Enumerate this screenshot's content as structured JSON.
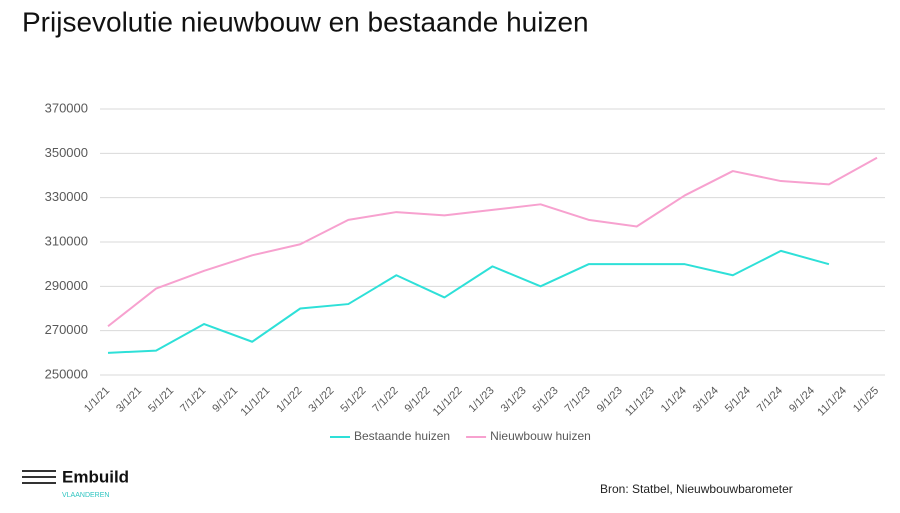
{
  "chart_data": {
    "type": "line",
    "title": "Prijsevolutie nieuwbouw en bestaande huizen",
    "x": [
      "2021-01-01",
      "2021-04-01",
      "2021-07-01",
      "2021-10-01",
      "2022-01-01",
      "2022-04-01",
      "2022-07-01",
      "2022-10-01",
      "2023-01-01",
      "2023-04-01",
      "2023-07-01",
      "2023-10-01",
      "2024-01-01",
      "2024-04-01",
      "2024-07-01",
      "2024-10-01",
      "2025-01-01"
    ],
    "xlim": [
      "2021-01-01",
      "2025-01-01"
    ],
    "xticks": [
      {
        "value": "2021-01-01",
        "label": "1/1/21"
      },
      {
        "value": "2021-03-01",
        "label": "3/1/21"
      },
      {
        "value": "2021-05-01",
        "label": "5/1/21"
      },
      {
        "value": "2021-07-01",
        "label": "7/1/21"
      },
      {
        "value": "2021-09-01",
        "label": "9/1/21"
      },
      {
        "value": "2021-11-01",
        "label": "11/1/21"
      },
      {
        "value": "2022-01-01",
        "label": "1/1/22"
      },
      {
        "value": "2022-03-01",
        "label": "3/1/22"
      },
      {
        "value": "2022-05-01",
        "label": "5/1/22"
      },
      {
        "value": "2022-07-01",
        "label": "7/1/22"
      },
      {
        "value": "2022-09-01",
        "label": "9/1/22"
      },
      {
        "value": "2022-11-01",
        "label": "11/1/22"
      },
      {
        "value": "2023-01-01",
        "label": "1/1/23"
      },
      {
        "value": "2023-03-01",
        "label": "3/1/23"
      },
      {
        "value": "2023-05-01",
        "label": "5/1/23"
      },
      {
        "value": "2023-07-01",
        "label": "7/1/23"
      },
      {
        "value": "2023-09-01",
        "label": "9/1/23"
      },
      {
        "value": "2023-11-01",
        "label": "11/1/23"
      },
      {
        "value": "2024-01-01",
        "label": "1/1/24"
      },
      {
        "value": "2024-03-01",
        "label": "3/1/24"
      },
      {
        "value": "2024-05-01",
        "label": "5/1/24"
      },
      {
        "value": "2024-07-01",
        "label": "7/1/24"
      },
      {
        "value": "2024-09-01",
        "label": "9/1/24"
      },
      {
        "value": "2024-11-01",
        "label": "11/1/24"
      },
      {
        "value": "2025-01-01",
        "label": "1/1/25"
      }
    ],
    "ylim": [
      250000,
      370000
    ],
    "yticks": [
      250000,
      270000,
      290000,
      310000,
      330000,
      350000,
      370000
    ],
    "grid": true,
    "legend": "bottom",
    "series": [
      {
        "name": "Bestaande huizen",
        "color": "#2ee0d8",
        "values": [
          260000,
          261000,
          273000,
          265000,
          280000,
          282000,
          295000,
          285000,
          299000,
          290000,
          300000,
          300000,
          300000,
          295000,
          306000,
          300000,
          null
        ]
      },
      {
        "name": "Nieuwbouw huizen",
        "color": "#f7a1cf",
        "values": [
          272000,
          289000,
          297000,
          304000,
          309000,
          320000,
          323500,
          322000,
          324500,
          327000,
          320000,
          317000,
          331000,
          342000,
          337500,
          336000,
          348000
        ]
      }
    ],
    "source": "Bron: Statbel, Nieuwbouwbarometer"
  },
  "logo": {
    "name": "Embuild",
    "sub": "VLAANDEREN"
  }
}
